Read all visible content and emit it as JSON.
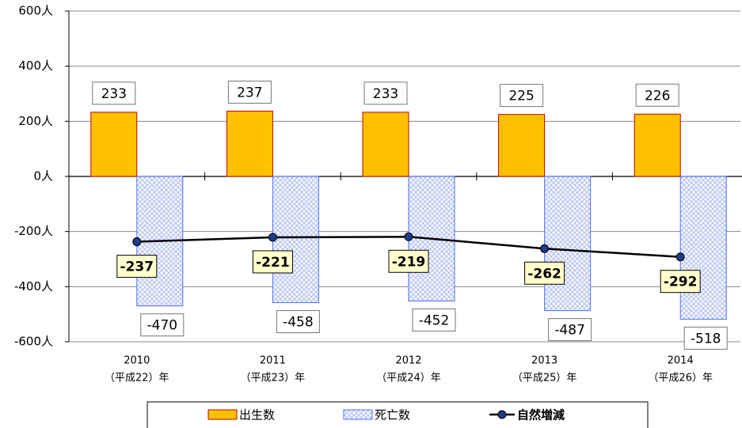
{
  "chart_data": {
    "type": "bar",
    "categories": [
      [
        "2010",
        "（平成22）年"
      ],
      [
        "2011",
        "（平成23）年"
      ],
      [
        "2012",
        "（平成24）年"
      ],
      [
        "2013",
        "（平成25）年"
      ],
      [
        "2014",
        "（平成26）年"
      ]
    ],
    "series": [
      {
        "name": "出生数",
        "type": "bar",
        "color": "#ffc000",
        "values": [
          233,
          237,
          233,
          225,
          226
        ]
      },
      {
        "name": "死亡数",
        "type": "bar",
        "color": "#4f6fff",
        "values": [
          -470,
          -458,
          -452,
          -487,
          -518
        ]
      },
      {
        "name": "自然増減",
        "type": "line",
        "color": "#000000",
        "values": [
          -237,
          -221,
          -219,
          -262,
          -292
        ]
      }
    ],
    "ylim": [
      -600,
      600
    ],
    "yticks": [
      {
        "value": -600,
        "label": "-600人"
      },
      {
        "value": -400,
        "label": "-400人"
      },
      {
        "value": -200,
        "label": "-200人"
      },
      {
        "value": 0,
        "label": "0人"
      },
      {
        "value": 200,
        "label": "200人"
      },
      {
        "value": 400,
        "label": "400人"
      },
      {
        "value": 600,
        "label": "600人"
      }
    ],
    "grid": true,
    "legend": "bottom"
  }
}
